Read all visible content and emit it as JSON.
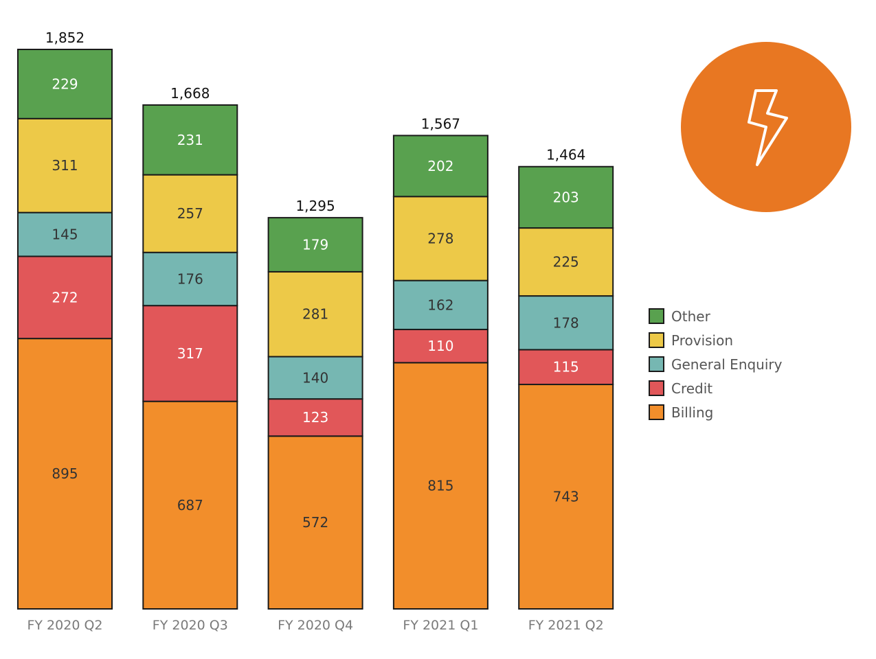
{
  "chart_data": {
    "type": "bar",
    "stacked": true,
    "categories": [
      "FY 2020 Q2",
      "FY 2020 Q3",
      "FY 2020 Q4",
      "FY 2021 Q1",
      "FY 2021 Q2"
    ],
    "series": [
      {
        "name": "Billing",
        "color": "#f28e2b",
        "label_color": "#333333",
        "values": [
          895,
          687,
          572,
          815,
          743
        ]
      },
      {
        "name": "Credit",
        "color": "#e15759",
        "label_color": "#ffffff",
        "values": [
          272,
          317,
          123,
          110,
          115
        ]
      },
      {
        "name": "General Enquiry",
        "color": "#76b7b2",
        "label_color": "#333333",
        "values": [
          145,
          176,
          140,
          162,
          178
        ]
      },
      {
        "name": "Provision",
        "color": "#edc948",
        "label_color": "#333333",
        "values": [
          311,
          257,
          281,
          278,
          225
        ]
      },
      {
        "name": "Other",
        "color": "#59a14f",
        "label_color": "#ffffff",
        "values": [
          229,
          231,
          179,
          202,
          203
        ]
      }
    ],
    "totals": [
      "1,852",
      "1,668",
      "1,295",
      "1,567",
      "1,464"
    ],
    "legend_order": [
      "Other",
      "Provision",
      "General Enquiry",
      "Credit",
      "Billing"
    ],
    "legend_position": "right",
    "grid": false,
    "ylim": [
      0,
      1852
    ]
  },
  "badge": {
    "color": "#e87722",
    "icon": "lightning-bolt-icon"
  }
}
